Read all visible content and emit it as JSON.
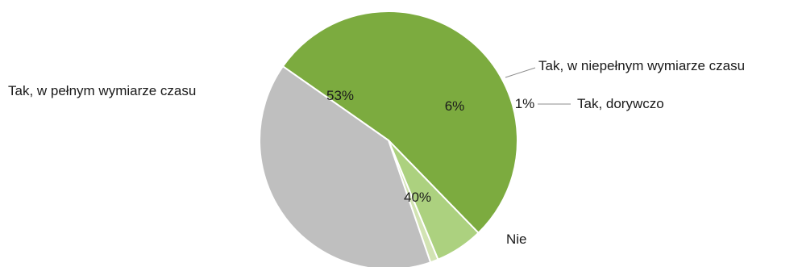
{
  "chart_data": {
    "type": "pie",
    "categories": [
      "Tak, w pełnym wymiarze czasu",
      "Tak, w niepełnym wymiarze czasu",
      "Tak, dorywczo",
      "Nie"
    ],
    "values": [
      53,
      6,
      1,
      40
    ],
    "value_labels": [
      "53%",
      "6%",
      "1%",
      "40%"
    ],
    "colors": [
      "#7cab3f",
      "#acd17f",
      "#d2e3b3",
      "#bfbfbf"
    ],
    "start_angle_deg": -145,
    "direction": "clockwise",
    "legend": "none"
  }
}
